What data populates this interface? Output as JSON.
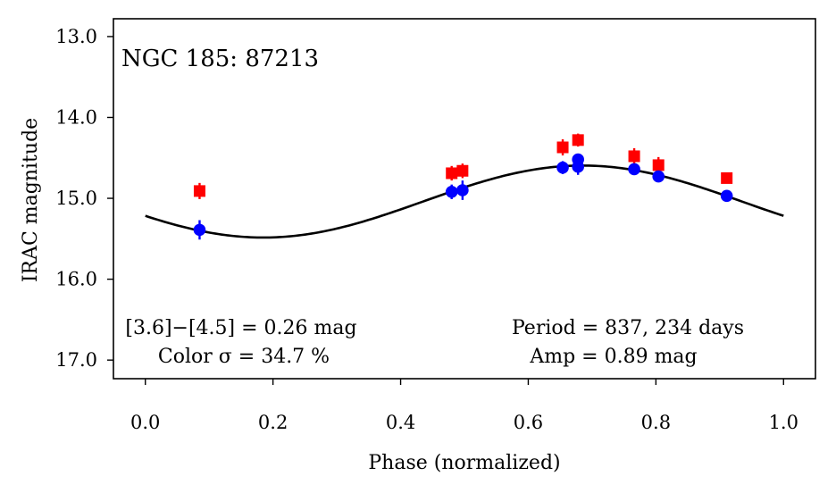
{
  "chart_data": {
    "type": "scatter",
    "title": "NGC 185: 87213",
    "xlabel": "Phase (normalized)",
    "ylabel": "IRAC magnitude",
    "xlim": [
      -0.05,
      1.05
    ],
    "ylim": [
      17.23,
      12.78
    ],
    "y_inverted": true,
    "grid": false,
    "x_ticks": [
      {
        "value": 0.0,
        "label": "0.0"
      },
      {
        "value": 0.2,
        "label": "0.2"
      },
      {
        "value": 0.4,
        "label": "0.4"
      },
      {
        "value": 0.6,
        "label": "0.6"
      },
      {
        "value": 0.8,
        "label": "0.8"
      },
      {
        "value": 1.0,
        "label": "1.0"
      }
    ],
    "y_ticks": [
      {
        "value": 13.0,
        "label": "13.0"
      },
      {
        "value": 14.0,
        "label": "14.0"
      },
      {
        "value": 15.0,
        "label": "15.0"
      },
      {
        "value": 16.0,
        "label": "16.0"
      },
      {
        "value": 17.0,
        "label": "17.0"
      }
    ],
    "series": [
      {
        "color": "#ff0000",
        "marker": "square",
        "points": [
          {
            "x": 0.085,
            "y": 14.91,
            "err": 0.1
          },
          {
            "x": 0.48,
            "y": 14.69,
            "err": 0.09
          },
          {
            "x": 0.497,
            "y": 14.66,
            "err": 0.09
          },
          {
            "x": 0.654,
            "y": 14.37,
            "err": 0.1
          },
          {
            "x": 0.678,
            "y": 14.28,
            "err": 0.08
          },
          {
            "x": 0.766,
            "y": 14.48,
            "err": 0.1
          },
          {
            "x": 0.804,
            "y": 14.59,
            "err": 0.1
          },
          {
            "x": 0.911,
            "y": 14.75,
            "err": 0.05
          }
        ]
      },
      {
        "color": "#0000ff",
        "marker": "circle",
        "points": [
          {
            "x": 0.085,
            "y": 15.39,
            "err": 0.12
          },
          {
            "x": 0.48,
            "y": 14.92,
            "err": 0.09
          },
          {
            "x": 0.497,
            "y": 14.9,
            "err": 0.12
          },
          {
            "x": 0.654,
            "y": 14.62,
            "err": 0.08
          },
          {
            "x": 0.678,
            "y": 14.52,
            "err": 0.06
          },
          {
            "x": 0.678,
            "y": 14.61,
            "err": 0.1
          },
          {
            "x": 0.766,
            "y": 14.64,
            "err": 0.06
          },
          {
            "x": 0.804,
            "y": 14.73,
            "err": 0.05
          },
          {
            "x": 0.911,
            "y": 14.97,
            "err": 0.04
          }
        ]
      }
    ],
    "fit_curve": {
      "color": "#000000",
      "mean": 15.04,
      "amplitude": 0.445,
      "phase_of_maximum": 0.685
    },
    "annotations": {
      "color_line1": "[3.6]−[4.5] = 0.26 mag",
      "color_line2": "Color σ = 34.7 %",
      "period_line1": "Period = 837, 234 days",
      "period_line2": "Amp = 0.89 mag"
    }
  }
}
